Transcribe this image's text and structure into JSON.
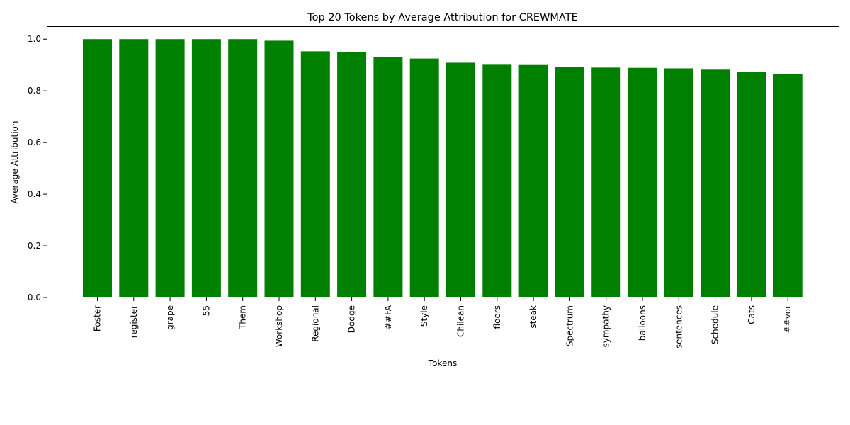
{
  "chart_data": {
    "type": "bar",
    "title": "Top 20 Tokens by Average Attribution for CREWMATE",
    "xlabel": "Tokens",
    "ylabel": "Average Attribution",
    "categories": [
      "Foster",
      "register",
      "grape",
      "55",
      "Them",
      "Workshop",
      "Regional",
      "Dodge",
      "##FA",
      "Style",
      "Chilean",
      "floors",
      "steak",
      "Spectrum",
      "sympathy",
      "balloons",
      "sentences",
      "Schedule",
      "Cats",
      "##vor"
    ],
    "values": [
      1.0,
      1.0,
      1.0,
      1.0,
      1.0,
      0.994,
      0.953,
      0.949,
      0.931,
      0.925,
      0.909,
      0.901,
      0.9,
      0.893,
      0.89,
      0.889,
      0.887,
      0.882,
      0.873,
      0.865
    ],
    "ylim": [
      0,
      1.05
    ],
    "yticks": [
      0.0,
      0.2,
      0.4,
      0.6,
      0.8,
      1.0
    ],
    "ytick_labels": [
      "0.0",
      "0.2",
      "0.4",
      "0.6",
      "0.8",
      "1.0"
    ],
    "bar_color": "#008000",
    "grid": false,
    "legend": "none"
  }
}
